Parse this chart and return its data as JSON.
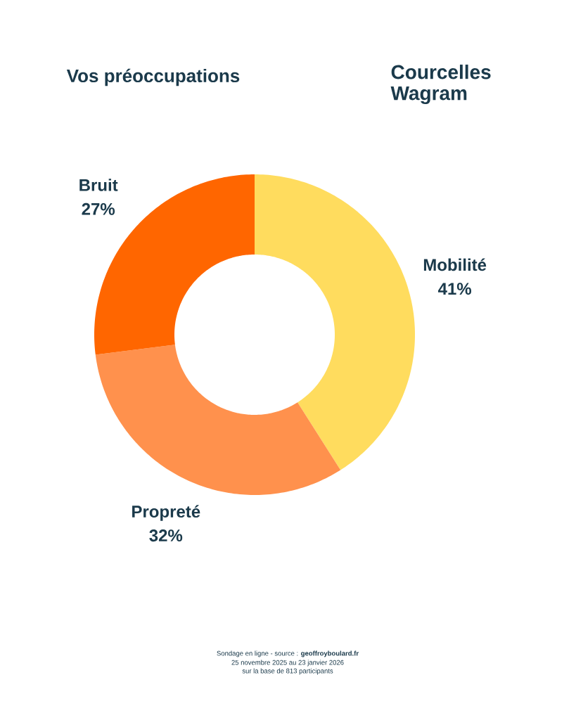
{
  "chart_data": {
    "type": "donut",
    "title": "Vos préoccupations",
    "subtitle": "Courcelles Wagram",
    "categories": [
      "Mobilité",
      "Propreté",
      "Bruit"
    ],
    "values": [
      41,
      32,
      27
    ],
    "value_labels": [
      "41%",
      "32%",
      "27%"
    ],
    "colors": [
      "#ffdc5e",
      "#ff914d",
      "#ff6600"
    ],
    "annotations": [
      "Sondage en ligne - source : **geoffroyboulard.fr**",
      "25 novembre 2025 au 23 janvier 2026",
      "sur la base de 813 participants"
    ]
  }
}
